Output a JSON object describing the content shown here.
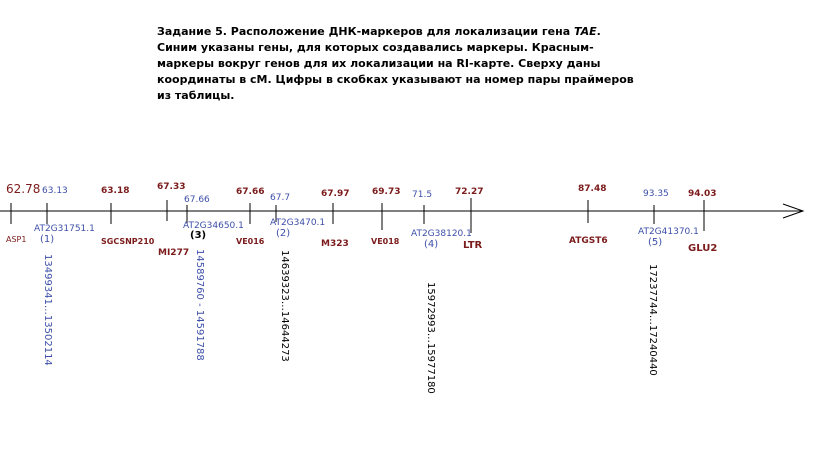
{
  "caption": {
    "part1": "Задание 5. Расположение ДНК-маркеров для локализации гена ",
    "gene": "TAE",
    "part2": ". Синим указаны гены, для которых создавались маркеры. Красным-маркеры вокруг генов для их локализации на RI-карте. Сверху даны координаты в сМ. Цифры в скобках указывают на номер пары праймеров из таблицы."
  },
  "colors": {
    "red": "#7b1b1b",
    "blue": "#3d4fa8",
    "axis": "#000000"
  },
  "markers": [
    {
      "name": "ASP1",
      "coord": "62.78",
      "type": "red"
    },
    {
      "name": "AT2G31751.1",
      "coord": "63.13",
      "type": "blue",
      "pair": "(1)",
      "range": "13499341…13502114"
    },
    {
      "name": "SGCSNP210",
      "coord": "63.18",
      "type": "red"
    },
    {
      "name": "MI277",
      "coord": "67.33",
      "type": "red"
    },
    {
      "name": "AT2G34650.1",
      "coord": "67.66",
      "type": "blue",
      "pair": "(3)",
      "range": "14589760 - 14591788"
    },
    {
      "name": "VE016",
      "coord": "67.66",
      "type": "red"
    },
    {
      "name": "AT2G3470.1",
      "coord": "67.7",
      "type": "blue",
      "pair": "(2)",
      "range": "14639323…14644273"
    },
    {
      "name": "M323",
      "coord": "67.97",
      "type": "red"
    },
    {
      "name": "VE018",
      "coord": "69.73",
      "type": "red"
    },
    {
      "name": "AT2G38120.1",
      "coord": "71.5",
      "type": "blue",
      "pair": "(4)",
      "range": "15972993…15977180"
    },
    {
      "name": "LTR",
      "coord": "72.27",
      "type": "red"
    },
    {
      "name": "ATGST6",
      "coord": "87.48",
      "type": "red"
    },
    {
      "name": "AT2G41370.1",
      "coord": "93.35",
      "type": "blue",
      "pair": "(5)",
      "range": "17237744…17240440"
    },
    {
      "name": "GLU2",
      "coord": "94.03",
      "type": "red"
    }
  ]
}
